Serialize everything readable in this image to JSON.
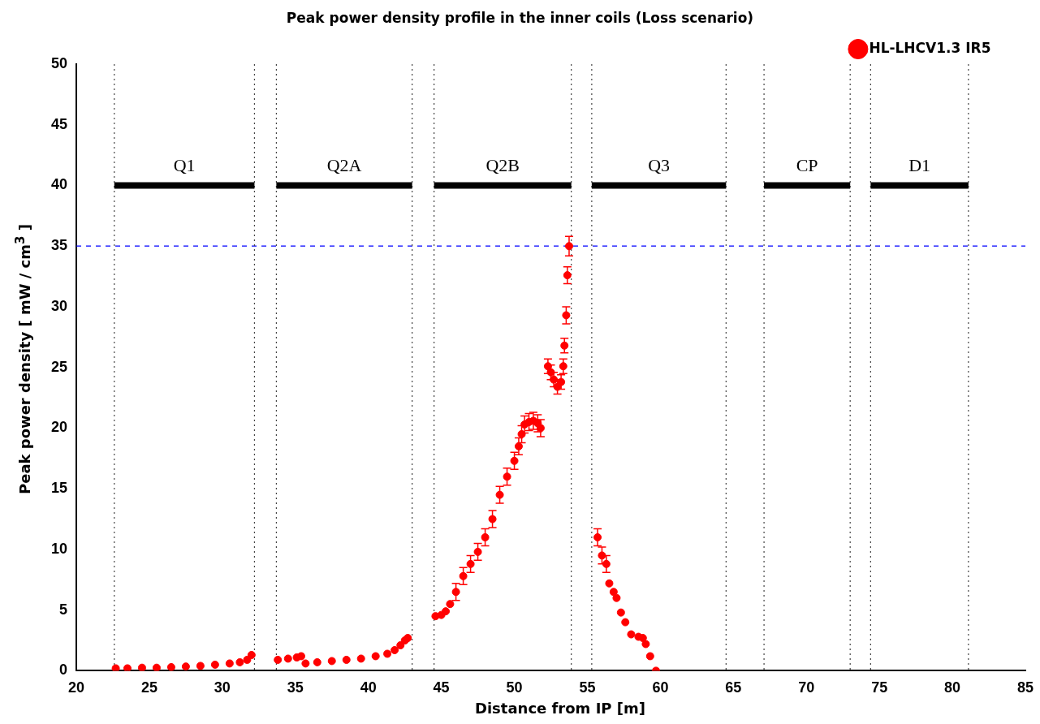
{
  "chart_data": {
    "type": "scatter",
    "title": "Peak power density profile in the inner coils (Loss scenario)",
    "xlabel": "Distance from IP [m]",
    "ylabel": "Peak power density [ mW / cm$^{3}$ ]",
    "xlim": [
      20,
      85
    ],
    "xticks": [
      20,
      25,
      30,
      35,
      40,
      45,
      50,
      55,
      60,
      65,
      70,
      75,
      80,
      85
    ],
    "ylim": [
      0,
      50
    ],
    "yticks": [
      0,
      5,
      10,
      15,
      20,
      25,
      30,
      35,
      40,
      45,
      50
    ],
    "grid": false,
    "legend": "top right",
    "marker": "circle",
    "ref_lines": [
      {
        "axis": "y",
        "value": 35,
        "color": "#0000ff",
        "line_style": "dashed"
      },
      {
        "axis": "x",
        "value": 22.6,
        "color": "#444444",
        "line_style": "dotted"
      },
      {
        "axis": "x",
        "value": 32.2,
        "color": "#444444",
        "line_style": "dotted"
      },
      {
        "axis": "x",
        "value": 33.7,
        "color": "#444444",
        "line_style": "dotted"
      },
      {
        "axis": "x",
        "value": 43.0,
        "color": "#444444",
        "line_style": "dotted"
      },
      {
        "axis": "x",
        "value": 44.5,
        "color": "#444444",
        "line_style": "dotted"
      },
      {
        "axis": "x",
        "value": 53.9,
        "color": "#444444",
        "line_style": "dotted"
      },
      {
        "axis": "x",
        "value": 55.3,
        "color": "#444444",
        "line_style": "dotted"
      },
      {
        "axis": "x",
        "value": 64.5,
        "color": "#444444",
        "line_style": "dotted"
      },
      {
        "axis": "x",
        "value": 67.1,
        "color": "#444444",
        "line_style": "dotted"
      },
      {
        "axis": "x",
        "value": 73.0,
        "color": "#444444",
        "line_style": "dotted"
      },
      {
        "axis": "x",
        "value": 74.4,
        "color": "#444444",
        "line_style": "dotted"
      },
      {
        "axis": "x",
        "value": 81.1,
        "color": "#444444",
        "line_style": "dotted"
      }
    ],
    "annotations": [
      {
        "text": "Q1",
        "x": 27.4,
        "y": 40
      },
      {
        "text": "Q2A",
        "x": 38.35,
        "y": 40
      },
      {
        "text": "Q2B",
        "x": 49.2,
        "y": 40
      },
      {
        "text": "Q3",
        "x": 59.9,
        "y": 40
      },
      {
        "text": "CP",
        "x": 70.05,
        "y": 40
      },
      {
        "text": "D1",
        "x": 77.75,
        "y": 40
      }
    ],
    "series": [
      {
        "name": "HL-LHCV1.3 IR5",
        "color": "#ff0000",
        "x": [
          22.7,
          23.5,
          24.5,
          25.5,
          26.5,
          27.5,
          28.5,
          29.5,
          30.5,
          31.2,
          31.7,
          32.0,
          33.8,
          34.5,
          35.1,
          35.4,
          35.7,
          36.5,
          37.5,
          38.5,
          39.5,
          40.5,
          41.3,
          41.8,
          42.2,
          42.5,
          42.7,
          44.6,
          45.0,
          45.3,
          45.6,
          46.0,
          46.5,
          47.0,
          47.5,
          48.0,
          48.5,
          49.0,
          49.5,
          50.0,
          50.3,
          50.5,
          50.7,
          51.0,
          51.3,
          51.6,
          51.8,
          52.3,
          52.5,
          52.7,
          52.95,
          53.2,
          53.35,
          53.43,
          53.55,
          53.63,
          53.75,
          55.7,
          56.0,
          56.3,
          56.5,
          56.8,
          57.0,
          57.3,
          57.6,
          58.0,
          58.5,
          58.8,
          59.0,
          59.3,
          59.7
        ],
        "values": [
          0.2,
          0.2,
          0.25,
          0.25,
          0.3,
          0.35,
          0.4,
          0.5,
          0.6,
          0.7,
          0.9,
          1.3,
          0.9,
          1.0,
          1.1,
          1.2,
          0.6,
          0.7,
          0.8,
          0.9,
          1.0,
          1.2,
          1.4,
          1.7,
          2.1,
          2.5,
          2.7,
          4.5,
          4.6,
          4.9,
          5.5,
          6.5,
          7.8,
          8.8,
          9.8,
          11.0,
          12.5,
          14.5,
          16.0,
          17.3,
          18.5,
          19.5,
          20.3,
          20.5,
          20.6,
          20.4,
          20.0,
          25.1,
          24.6,
          24.0,
          23.4,
          23.8,
          25.1,
          26.8,
          29.3,
          32.6,
          35.0,
          11.0,
          9.5,
          8.8,
          7.2,
          6.5,
          6.0,
          4.8,
          4.0,
          3.0,
          2.8,
          2.7,
          2.2,
          1.2,
          0.0
        ],
        "errors": [
          null,
          null,
          null,
          null,
          null,
          null,
          null,
          null,
          null,
          null,
          null,
          null,
          null,
          null,
          null,
          null,
          null,
          null,
          null,
          null,
          null,
          null,
          null,
          null,
          null,
          null,
          null,
          null,
          null,
          null,
          null,
          0.7,
          0.7,
          0.7,
          0.7,
          0.7,
          0.7,
          0.7,
          0.7,
          0.7,
          0.7,
          0.7,
          0.7,
          0.7,
          0.7,
          0.7,
          0.7,
          0.6,
          0.6,
          0.6,
          0.6,
          0.6,
          0.6,
          0.6,
          0.7,
          0.7,
          0.8,
          0.7,
          0.7,
          0.7,
          null,
          null,
          null,
          null,
          null,
          null,
          null,
          null,
          null,
          null,
          null
        ]
      },
      {
        "type": "line",
        "color": "#000000",
        "x": [
          22.6,
          32.2,
          null,
          33.7,
          43.0,
          null,
          44.5,
          53.9,
          null,
          55.3,
          64.5,
          null,
          67.1,
          73.0,
          null,
          74.4,
          81.1
        ],
        "values": [
          40,
          40,
          null,
          40,
          40,
          null,
          40,
          40,
          null,
          40,
          40,
          null,
          40,
          40,
          null,
          40,
          40
        ],
        "marker": "none"
      }
    ]
  }
}
